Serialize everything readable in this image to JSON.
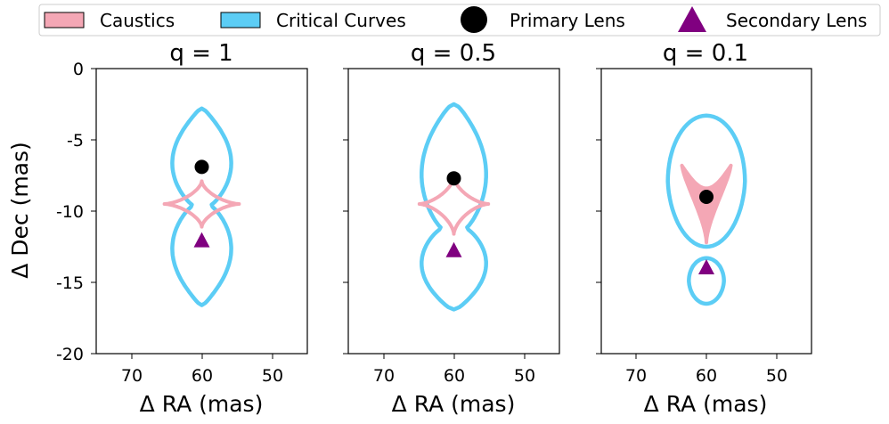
{
  "legend": {
    "items": [
      {
        "label": "Caustics",
        "color": "#f4a7b5",
        "marker": "patch"
      },
      {
        "label": "Critical Curves",
        "color": "#5ccdf5",
        "marker": "patch"
      },
      {
        "label": "Primary Lens",
        "color": "#000000",
        "marker": "circle"
      },
      {
        "label": "Secondary Lens",
        "color": "#800080",
        "marker": "triangle"
      }
    ]
  },
  "chart_data": [
    {
      "type": "scatter",
      "title": "q = 1",
      "xlabel": "Δ RA (mas)",
      "ylabel": "Δ Dec (mas)",
      "xlim": [
        75,
        45
      ],
      "ylim": [
        -20,
        0
      ],
      "xticks": [
        70,
        60,
        50
      ],
      "yticks": [
        0,
        -5,
        -10,
        -15,
        -20
      ],
      "primary_lens": [
        60,
        -6.9
      ],
      "secondary_lens": [
        60,
        -12.1
      ],
      "critical_curve_peanut": {
        "x_center": 60,
        "top": -2.8,
        "bottom": -16.6,
        "waist": -9.6,
        "half_width": 4.2,
        "waist_half_width": 1.2
      },
      "caustic_shape": "astroid",
      "caustic": {
        "x_center": 60,
        "y_center": -9.5,
        "half_width": 5.3,
        "top": -7.9,
        "bottom": -11.1
      }
    },
    {
      "type": "scatter",
      "title": "q = 0.5",
      "xlabel": "Δ RA (mas)",
      "xlim": [
        75,
        45
      ],
      "ylim": [
        -20,
        0
      ],
      "xticks": [
        70,
        60,
        50
      ],
      "primary_lens": [
        60,
        -7.7
      ],
      "secondary_lens": [
        60,
        -12.8
      ],
      "critical_curve_peanut": {
        "x_center": 60,
        "top": -2.5,
        "bottom": -16.9,
        "waist": -11.2,
        "half_width": 4.6,
        "waist_half_width": 1.7
      },
      "caustic_shape": "astroid",
      "caustic": {
        "x_center": 60,
        "y_center": -9.5,
        "half_width": 4.9,
        "top": -7.6,
        "bottom": -11.6
      }
    },
    {
      "type": "scatter",
      "title": "q = 0.1",
      "xlabel": "Δ RA (mas)",
      "xlim": [
        75,
        45
      ],
      "ylim": [
        -20,
        0
      ],
      "xticks": [
        70,
        60,
        50
      ],
      "primary_lens": [
        60,
        -9.0
      ],
      "secondary_lens": [
        60,
        -14.0
      ],
      "critical_curve_main": {
        "x_center": 60,
        "y_center": -7.9,
        "half_width": 5.5,
        "half_height": 4.6
      },
      "critical_curve_small": {
        "x_center": 60,
        "y_center": -14.9,
        "half_width": 2.5,
        "half_height": 1.6
      },
      "caustic_shape": "wedge",
      "caustic": {
        "x_center": 60,
        "top": -6.8,
        "bottom": -12.2,
        "half_width": 3.5
      }
    }
  ]
}
